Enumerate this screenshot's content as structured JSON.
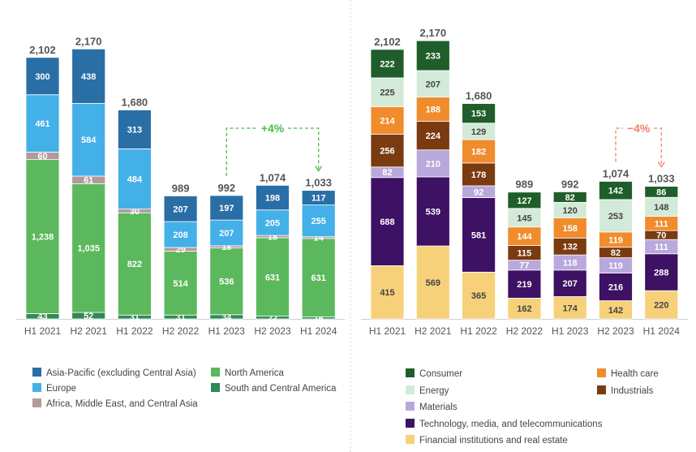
{
  "chart_data": [
    {
      "type": "bar",
      "stacked": true,
      "categories": [
        "H1 2021",
        "H2 2021",
        "H1 2022",
        "H2 2022",
        "H1 2023",
        "H2 2023",
        "H1 2024"
      ],
      "totals": [
        "2,102",
        "2,170",
        "1,680",
        "989",
        "992",
        "1,074",
        "1,033"
      ],
      "series": [
        {
          "name": "South and Central America",
          "color": "#2e8b57",
          "values": [
            43,
            52,
            31,
            31,
            34,
            22,
            16
          ]
        },
        {
          "name": "North America",
          "color": "#5cb85c",
          "values": [
            1238,
            1035,
            822,
            514,
            536,
            631,
            631
          ]
        },
        {
          "name": "Africa, Middle East, and Central Asia",
          "color": "#b39a9a",
          "values": [
            60,
            61,
            30,
            29,
            18,
            18,
            14
          ]
        },
        {
          "name": "Europe",
          "color": "#44b0e8",
          "values": [
            461,
            584,
            484,
            208,
            207,
            205,
            255
          ]
        },
        {
          "name": "Asia-Pacific (excluding Central Asia)",
          "color": "#2a6ea6",
          "values": [
            300,
            438,
            313,
            207,
            197,
            198,
            117
          ]
        }
      ],
      "annotation": {
        "text": "+4%",
        "from": "H1 2023",
        "to": "H1 2024",
        "color": "#4cbb4c"
      },
      "ylim": [
        0,
        2300
      ],
      "xlabel": "",
      "ylabel": "",
      "legend": {
        "placement": "bottom",
        "order": [
          "Asia-Pacific (excluding Central Asia)",
          "North America",
          "Europe",
          "South and Central America",
          "Africa, Middle East, and Central Asia"
        ]
      }
    },
    {
      "type": "bar",
      "stacked": true,
      "categories": [
        "H1 2021",
        "H2 2021",
        "H1 2022",
        "H2 2022",
        "H1 2023",
        "H2 2023",
        "H1 2024"
      ],
      "totals": [
        "2,102",
        "2,170",
        "1,680",
        "989",
        "992",
        "1,074",
        "1,033"
      ],
      "series": [
        {
          "name": "Financial institutions and real estate",
          "color": "#f7d07a",
          "values": [
            415,
            569,
            365,
            162,
            174,
            142,
            220
          ]
        },
        {
          "name": "Technology, media, and telecommunications",
          "color": "#3d1164",
          "values": [
            688,
            539,
            581,
            219,
            207,
            216,
            288
          ]
        },
        {
          "name": "Materials",
          "color": "#b9a8dc",
          "values": [
            82,
            210,
            92,
            77,
            118,
            119,
            111
          ]
        },
        {
          "name": "Industrials",
          "color": "#7a3b10",
          "values": [
            256,
            224,
            178,
            115,
            132,
            82,
            70
          ]
        },
        {
          "name": "Health care",
          "color": "#f08c2c",
          "values": [
            214,
            188,
            182,
            144,
            158,
            119,
            111
          ]
        },
        {
          "name": "Energy",
          "color": "#d4ead8",
          "values": [
            225,
            207,
            129,
            145,
            120,
            253,
            148
          ]
        },
        {
          "name": "Consumer",
          "color": "#1f5e2a",
          "values": [
            222,
            233,
            153,
            127,
            82,
            142,
            86
          ]
        }
      ],
      "annotation": {
        "text": "−4%",
        "from": "H2 2023",
        "to": "H1 2024",
        "color": "#f08070"
      },
      "ylim": [
        0,
        2300
      ],
      "xlabel": "",
      "ylabel": "",
      "legend": {
        "placement": "bottom",
        "order": [
          "Consumer",
          "Health care",
          "Energy",
          "Industrials",
          "Materials",
          "Technology, media, and telecommunications",
          "Financial institutions and real estate"
        ]
      }
    }
  ]
}
